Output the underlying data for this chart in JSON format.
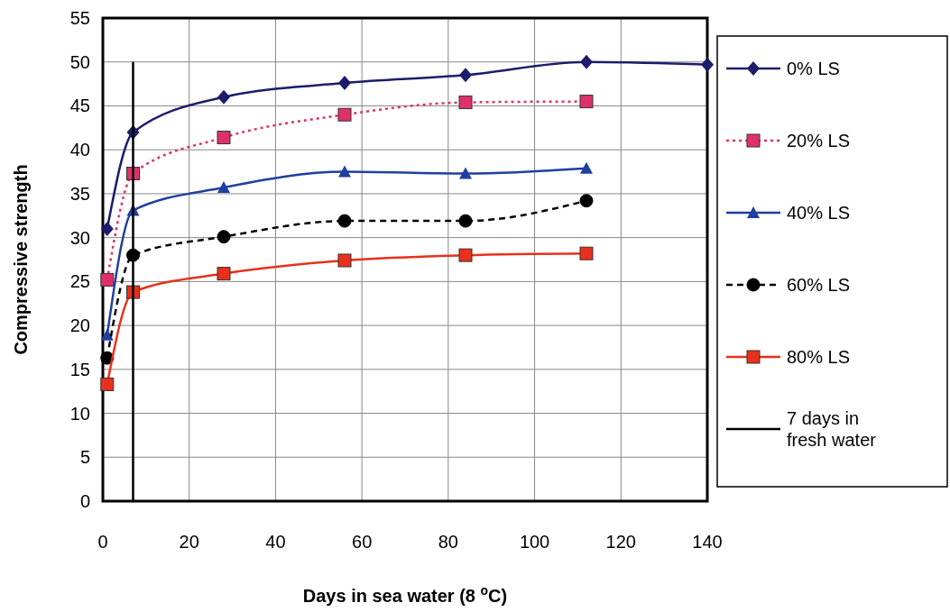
{
  "chart_data": {
    "type": "line",
    "xlabel": "Days in sea water (8 $^{o}$C)",
    "ylabel": "Compressive strength",
    "xlim": [
      0,
      140
    ],
    "ylim": [
      0,
      55
    ],
    "xticks": [
      0,
      20,
      40,
      60,
      80,
      100,
      120,
      140
    ],
    "yticks": [
      0,
      5,
      10,
      15,
      20,
      25,
      30,
      35,
      40,
      45,
      50,
      55
    ],
    "grid": true,
    "legend": "right",
    "series": [
      {
        "name": "0% LS",
        "color": "#1c1c6b",
        "marker": "diamond",
        "line_style": "solid",
        "x": [
          1,
          7,
          28,
          56,
          84,
          112,
          140
        ],
        "values": [
          31,
          42,
          46,
          47.6,
          48.5,
          50,
          49.7
        ]
      },
      {
        "name": "20% LS",
        "color": "#e0306a",
        "marker": "square",
        "line_style": "dotted",
        "x": [
          1,
          7,
          28,
          56,
          84,
          112
        ],
        "values": [
          25.2,
          37.3,
          41.4,
          44,
          45.4,
          45.5
        ]
      },
      {
        "name": "40% LS",
        "color": "#1f3fa0",
        "marker": "triangle",
        "line_style": "solid",
        "x": [
          1,
          7,
          28,
          56,
          84,
          112
        ],
        "values": [
          18.9,
          33.1,
          35.7,
          37.5,
          37.3,
          37.9
        ]
      },
      {
        "name": "60% LS",
        "color": "#000000",
        "marker": "circle",
        "line_style": "dashed",
        "x": [
          1,
          7,
          28,
          56,
          84,
          112
        ],
        "values": [
          16.3,
          28,
          30.1,
          31.9,
          31.9,
          34.2
        ]
      },
      {
        "name": "80% LS",
        "color": "#e8301c",
        "marker": "square",
        "line_style": "solid",
        "x": [
          1,
          7,
          28,
          56,
          84,
          112
        ],
        "values": [
          13.3,
          23.8,
          25.9,
          27.4,
          28,
          28.2
        ]
      },
      {
        "name": "7 days in fresh water",
        "color": "#000000",
        "marker": "none",
        "line_style": "solid",
        "x": [
          7,
          7
        ],
        "values": [
          0,
          50
        ]
      }
    ]
  }
}
